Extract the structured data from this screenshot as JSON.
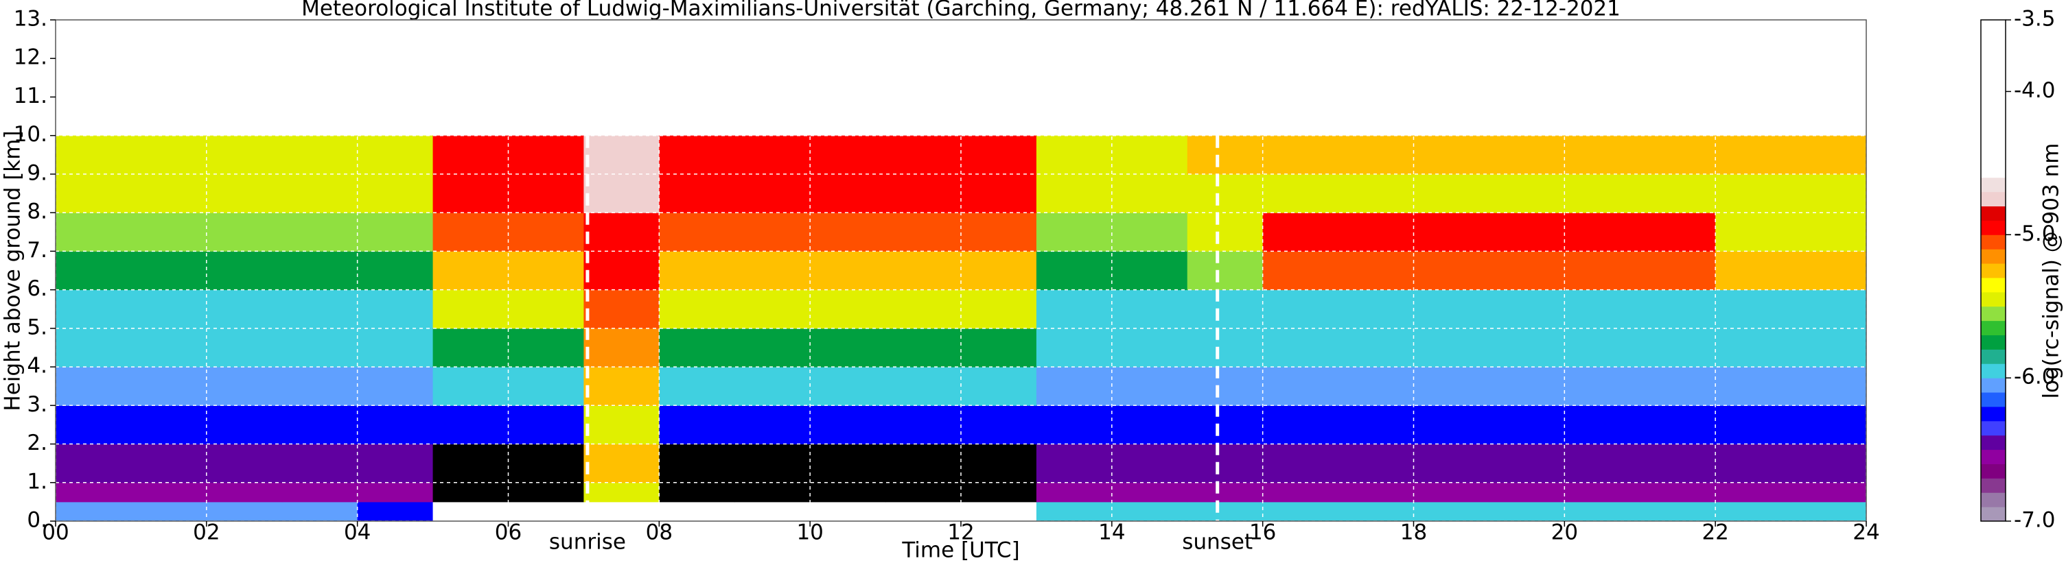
{
  "chart_data": {
    "type": "heatmap",
    "title": "Meteorological Institute of Ludwig-Maximilians-Universität (Garching, Germany; 48.261 N / 11.664 E):    redYALIS: 22-12-2021",
    "xlabel": "Time [UTC]",
    "ylabel": "Height above ground [km]",
    "colorbar_label": "log(rc-signal) @ 903 nm",
    "x_bins": [
      0,
      1,
      2,
      3,
      4,
      5,
      6,
      7,
      8,
      9,
      10,
      11,
      12,
      13,
      14,
      15,
      16,
      17,
      18,
      19,
      20,
      21,
      22,
      23,
      24
    ],
    "y_bins": [
      0,
      0.5,
      1,
      2,
      3,
      4,
      5,
      6,
      7,
      8,
      9,
      10
    ],
    "z": [
      [
        -6.1,
        -6.1,
        -6.1,
        -6.1,
        -6.2,
        -4.0,
        -4.0,
        -4.0,
        -4.0,
        -4.0,
        -4.0,
        -4.0,
        -4.0,
        -6.0,
        -6.0,
        -6.0,
        -6.0,
        -6.0,
        -6.0,
        -6.0,
        -6.0,
        -6.0,
        -6.0,
        -6.0
      ],
      [
        -6.6,
        -6.6,
        -6.6,
        -6.6,
        -6.6,
        null,
        null,
        -5.4,
        null,
        null,
        null,
        null,
        null,
        -6.6,
        -6.6,
        -6.6,
        -6.6,
        -6.6,
        -6.6,
        -6.6,
        -6.6,
        -6.6,
        -6.6,
        -6.6
      ],
      [
        -6.5,
        -6.5,
        -6.5,
        -6.5,
        -6.5,
        null,
        null,
        -5.3,
        null,
        null,
        null,
        null,
        null,
        -6.5,
        -6.5,
        -6.5,
        -6.5,
        -6.5,
        -6.5,
        -6.5,
        -6.5,
        -6.5,
        -6.5,
        -6.5
      ],
      [
        -6.3,
        -6.3,
        -6.3,
        -6.3,
        -6.3,
        -6.2,
        -6.2,
        -5.5,
        -6.2,
        -6.2,
        -6.2,
        -6.2,
        -6.2,
        -6.3,
        -6.3,
        -6.3,
        -6.3,
        -6.3,
        -6.3,
        -6.3,
        -6.3,
        -6.3,
        -6.3,
        -6.3
      ],
      [
        -6.1,
        -6.1,
        -6.1,
        -6.1,
        -6.1,
        -5.9,
        -5.9,
        -5.3,
        -5.9,
        -5.9,
        -5.9,
        -5.9,
        -5.9,
        -6.1,
        -6.1,
        -6.1,
        -6.1,
        -6.1,
        -6.1,
        -6.1,
        -6.1,
        -6.1,
        -6.1,
        -6.1
      ],
      [
        -6.0,
        -6.0,
        -6.0,
        -6.0,
        -6.0,
        -5.7,
        -5.7,
        -5.2,
        -5.7,
        -5.7,
        -5.7,
        -5.7,
        -5.7,
        -6.0,
        -6.0,
        -6.0,
        -6.0,
        -6.0,
        -6.0,
        -6.0,
        -6.0,
        -6.0,
        -6.0,
        -6.0
      ],
      [
        -5.9,
        -5.9,
        -5.9,
        -5.9,
        -5.9,
        -5.5,
        -5.5,
        -5.1,
        -5.5,
        -5.5,
        -5.5,
        -5.5,
        -5.5,
        -5.9,
        -5.9,
        -5.9,
        -5.9,
        -5.9,
        -5.9,
        -5.9,
        -5.9,
        -5.9,
        -5.9,
        -5.9
      ],
      [
        -5.8,
        -5.8,
        -5.8,
        -5.8,
        -5.8,
        -5.3,
        -5.3,
        -5.0,
        -5.3,
        -5.3,
        -5.3,
        -5.3,
        -5.3,
        -5.8,
        -5.8,
        -5.6,
        -5.1,
        -5.1,
        -5.1,
        -5.1,
        -5.1,
        -5.1,
        -5.3,
        -5.3
      ],
      [
        -5.6,
        -5.6,
        -5.6,
        -5.6,
        -5.6,
        -5.1,
        -5.1,
        -4.9,
        -5.1,
        -5.1,
        -5.1,
        -5.1,
        -5.1,
        -5.6,
        -5.6,
        -5.4,
        -5.0,
        -5.0,
        -5.0,
        -5.0,
        -5.0,
        -5.0,
        -5.4,
        -5.4
      ],
      [
        -5.5,
        -5.5,
        -5.5,
        -5.5,
        -5.5,
        -5.0,
        -5.0,
        -4.8,
        -5.0,
        -5.0,
        -5.0,
        -5.0,
        -5.0,
        -5.5,
        -5.5,
        -5.4,
        -5.4,
        -5.4,
        -5.4,
        -5.4,
        -5.4,
        -5.4,
        -5.4,
        -5.4
      ],
      [
        -5.4,
        -5.4,
        -5.4,
        -5.4,
        -5.4,
        -4.9,
        -4.9,
        -4.8,
        -4.9,
        -4.9,
        -4.9,
        -4.9,
        -4.9,
        -5.4,
        -5.4,
        -5.3,
        -5.3,
        -5.3,
        -5.3,
        -5.3,
        -5.3,
        -5.3,
        -5.3,
        -5.3
      ]
    ],
    "null_color": "#000000",
    "xlim": [
      0,
      24
    ],
    "xticks": [
      {
        "value": 0,
        "label": "00"
      },
      {
        "value": 2,
        "label": "02"
      },
      {
        "value": 4,
        "label": "04"
      },
      {
        "value": 6,
        "label": "06"
      },
      {
        "value": 8,
        "label": "08"
      },
      10,
      12,
      14,
      16,
      18,
      20,
      22,
      24
    ],
    "ylim": [
      0,
      13
    ],
    "yticks": [
      {
        "value": 0,
        "label": "0."
      },
      {
        "value": 1,
        "label": "1."
      },
      {
        "value": 2,
        "label": "2."
      },
      {
        "value": 3,
        "label": "3."
      },
      {
        "value": 4,
        "label": "4."
      },
      {
        "value": 5,
        "label": "5."
      },
      {
        "value": 6,
        "label": "6."
      },
      {
        "value": 7,
        "label": "7."
      },
      {
        "value": 8,
        "label": "8."
      },
      {
        "value": 9,
        "label": "9."
      },
      {
        "value": 10,
        "label": "10."
      },
      {
        "value": 11,
        "label": "11."
      },
      {
        "value": 12,
        "label": "12."
      },
      {
        "value": 13,
        "label": "13."
      }
    ],
    "grid": true,
    "clim": [
      -7.0,
      -3.5
    ],
    "cticks": [
      {
        "value": -7,
        "label": "-7.0"
      },
      {
        "value": -6,
        "label": "-6.0"
      },
      {
        "value": -5,
        "label": "-5.0"
      },
      {
        "value": -4,
        "label": "-4.0"
      },
      -3.5
    ],
    "colormap": [
      "#a898b8",
      "#9878a8",
      "#883890",
      "#800080",
      "#9000a0",
      "#6000a0",
      "#4040ff",
      "#0000ff",
      "#2060ff",
      "#60a0ff",
      "#40d0e0",
      "#20b090",
      "#00a040",
      "#30c030",
      "#90e040",
      "#e0f000",
      "#ffff00",
      "#ffc000",
      "#ff9000",
      "#ff5000",
      "#ff0000",
      "#e00000",
      "#f0d0d0",
      "#f0e0e0",
      "#ffffff",
      "#ffffff",
      "#ffffff",
      "#ffffff",
      "#ffffff",
      "#ffffff",
      "#ffffff",
      "#ffffff",
      "#ffffff",
      "#ffffff",
      "#ffffff"
    ],
    "annotations": [
      {
        "text": "sunrise",
        "x": 7.05
      },
      {
        "text": "sunset",
        "x": 15.4
      }
    ]
  }
}
